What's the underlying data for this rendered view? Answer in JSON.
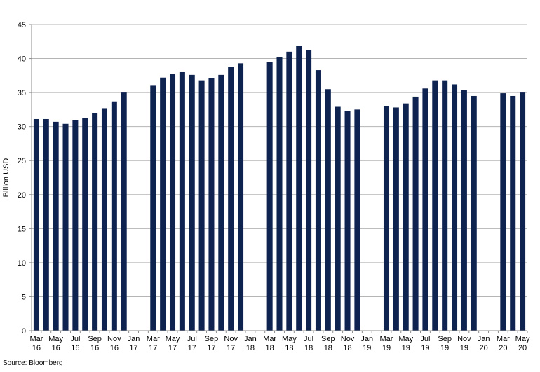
{
  "chart_data": {
    "type": "bar",
    "xlabel": "",
    "ylabel": "Billion USD",
    "ylim": [
      0,
      45
    ],
    "yticks": [
      0,
      5,
      10,
      15,
      20,
      25,
      30,
      35,
      40,
      45
    ],
    "grid": true,
    "bar_color": "#0f2350",
    "categories": [
      "Mar 16",
      "Apr 16",
      "May 16",
      "Jun 16",
      "Jul 16",
      "Aug 16",
      "Sep 16",
      "Oct 16",
      "Nov 16",
      "Dec 16",
      "Jan 17",
      "Feb 17",
      "Mar 17",
      "Apr 17",
      "May 17",
      "Jun 17",
      "Jul 17",
      "Aug 17",
      "Sep 17",
      "Oct 17",
      "Nov 17",
      "Dec 17",
      "Jan 18",
      "Feb 18",
      "Mar 18",
      "Apr 18",
      "May 18",
      "Jun 18",
      "Jul 18",
      "Aug 18",
      "Sep 18",
      "Oct 18",
      "Nov 18",
      "Dec 18",
      "Jan 19",
      "Feb 19",
      "Mar 19",
      "Apr 19",
      "May 19",
      "Jun 19",
      "Jul 19",
      "Aug 19",
      "Sep 19",
      "Oct 19",
      "Nov 19",
      "Dec 19",
      "Jan 20",
      "Feb 20",
      "Mar 20",
      "Apr 20",
      "May 20"
    ],
    "values": [
      31.1,
      31.1,
      30.7,
      30.4,
      30.9,
      31.3,
      32.0,
      32.7,
      33.7,
      35.0,
      null,
      null,
      36.0,
      37.2,
      37.7,
      38.0,
      37.6,
      36.8,
      37.1,
      37.6,
      38.8,
      39.3,
      null,
      null,
      39.5,
      40.2,
      41.0,
      41.9,
      41.2,
      38.3,
      35.5,
      32.9,
      32.3,
      32.5,
      null,
      null,
      33.0,
      32.8,
      33.4,
      34.4,
      35.6,
      36.8,
      36.8,
      36.2,
      35.4,
      34.5,
      null,
      null,
      34.9,
      34.5,
      35.0
    ],
    "tick_labels": [
      {
        "index": 0,
        "top": "Mar",
        "bottom": "16"
      },
      {
        "index": 2,
        "top": "May",
        "bottom": "16"
      },
      {
        "index": 4,
        "top": "Jul",
        "bottom": "16"
      },
      {
        "index": 6,
        "top": "Sep",
        "bottom": "16"
      },
      {
        "index": 8,
        "top": "Nov",
        "bottom": "16"
      },
      {
        "index": 10,
        "top": "Jan",
        "bottom": "17"
      },
      {
        "index": 12,
        "top": "Mar",
        "bottom": "17"
      },
      {
        "index": 14,
        "top": "May",
        "bottom": "17"
      },
      {
        "index": 16,
        "top": "Jul",
        "bottom": "17"
      },
      {
        "index": 18,
        "top": "Sep",
        "bottom": "17"
      },
      {
        "index": 20,
        "top": "Nov",
        "bottom": "17"
      },
      {
        "index": 22,
        "top": "Jan",
        "bottom": "18"
      },
      {
        "index": 24,
        "top": "Mar",
        "bottom": "18"
      },
      {
        "index": 26,
        "top": "May",
        "bottom": "18"
      },
      {
        "index": 28,
        "top": "Jul",
        "bottom": "18"
      },
      {
        "index": 30,
        "top": "Sep",
        "bottom": "18"
      },
      {
        "index": 32,
        "top": "Nov",
        "bottom": "18"
      },
      {
        "index": 34,
        "top": "Jan",
        "bottom": "19"
      },
      {
        "index": 36,
        "top": "Mar",
        "bottom": "19"
      },
      {
        "index": 38,
        "top": "May",
        "bottom": "19"
      },
      {
        "index": 40,
        "top": "Jul",
        "bottom": "19"
      },
      {
        "index": 42,
        "top": "Sep",
        "bottom": "19"
      },
      {
        "index": 44,
        "top": "Nov",
        "bottom": "19"
      },
      {
        "index": 46,
        "top": "Jan",
        "bottom": "20"
      },
      {
        "index": 48,
        "top": "Mar",
        "bottom": "20"
      },
      {
        "index": 50,
        "top": "May",
        "bottom": "20"
      }
    ]
  },
  "source": "Source: Bloomberg"
}
